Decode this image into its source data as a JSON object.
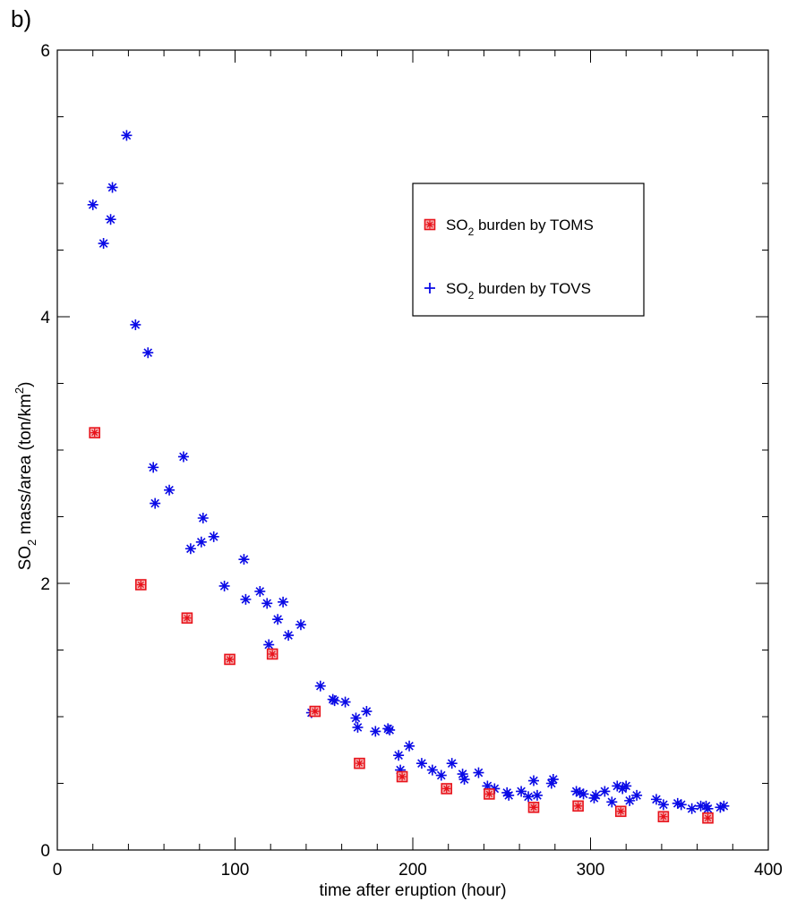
{
  "panel_label": "b)",
  "chart_data": {
    "type": "scatter",
    "xlabel": "time after eruption (hour)",
    "ylabel": {
      "prefix": "SO",
      "sub": "2",
      "mid": " mass/area (ton/km",
      "sup": "2",
      "suffix": ")"
    },
    "xlim": [
      0,
      400
    ],
    "ylim": [
      0,
      6
    ],
    "x_ticks": [
      0,
      100,
      200,
      300,
      400
    ],
    "y_ticks": [
      0,
      2,
      4,
      6
    ],
    "x_tick_labels": [
      "0",
      "100",
      "200",
      "300",
      "400"
    ],
    "y_tick_labels": [
      "0",
      "2",
      "4",
      "6"
    ],
    "grid": false,
    "legend_position": "top-right",
    "series": [
      {
        "name": "SO2 burden by TOMS",
        "legend": {
          "prefix": "SO",
          "sub": "2",
          "suffix": " burden by TOMS"
        },
        "color": "#e8131b",
        "marker": "square-star",
        "legend_marker": "square-star",
        "points": [
          [
            21,
            3.13
          ],
          [
            47,
            1.99
          ],
          [
            73,
            1.74
          ],
          [
            97,
            1.43
          ],
          [
            121,
            1.47
          ],
          [
            145,
            1.04
          ],
          [
            170,
            0.65
          ],
          [
            194,
            0.55
          ],
          [
            219,
            0.46
          ],
          [
            243,
            0.42
          ],
          [
            268,
            0.32
          ],
          [
            293,
            0.33
          ],
          [
            317,
            0.29
          ],
          [
            341,
            0.25
          ],
          [
            366,
            0.24
          ]
        ]
      },
      {
        "name": "SO2 burden by TOVS",
        "legend": {
          "prefix": "SO",
          "sub": "2",
          "suffix": " burden by TOVS"
        },
        "color": "#0a0ae6",
        "marker": "asterisk",
        "legend_marker": "plus",
        "points": [
          [
            20,
            4.84
          ],
          [
            26,
            4.55
          ],
          [
            30,
            4.73
          ],
          [
            31,
            4.97
          ],
          [
            39,
            5.36
          ],
          [
            44,
            3.94
          ],
          [
            51,
            3.73
          ],
          [
            54,
            2.87
          ],
          [
            55,
            2.6
          ],
          [
            63,
            2.7
          ],
          [
            71,
            2.95
          ],
          [
            75,
            2.26
          ],
          [
            81,
            2.31
          ],
          [
            82,
            2.49
          ],
          [
            88,
            2.35
          ],
          [
            94,
            1.98
          ],
          [
            105,
            2.18
          ],
          [
            106,
            1.88
          ],
          [
            114,
            1.94
          ],
          [
            118,
            1.85
          ],
          [
            119,
            1.54
          ],
          [
            124,
            1.73
          ],
          [
            127,
            1.86
          ],
          [
            130,
            1.61
          ],
          [
            137,
            1.69
          ],
          [
            143,
            1.03
          ],
          [
            148,
            1.23
          ],
          [
            155,
            1.13
          ],
          [
            156,
            1.12
          ],
          [
            162,
            1.11
          ],
          [
            168,
            0.99
          ],
          [
            169,
            0.92
          ],
          [
            174,
            1.04
          ],
          [
            179,
            0.89
          ],
          [
            186,
            0.91
          ],
          [
            187,
            0.9
          ],
          [
            192,
            0.71
          ],
          [
            193,
            0.6
          ],
          [
            198,
            0.78
          ],
          [
            205,
            0.65
          ],
          [
            211,
            0.6
          ],
          [
            216,
            0.56
          ],
          [
            222,
            0.65
          ],
          [
            228,
            0.57
          ],
          [
            229,
            0.53
          ],
          [
            237,
            0.58
          ],
          [
            242,
            0.48
          ],
          [
            246,
            0.46
          ],
          [
            253,
            0.43
          ],
          [
            254,
            0.41
          ],
          [
            261,
            0.44
          ],
          [
            265,
            0.4
          ],
          [
            268,
            0.52
          ],
          [
            270,
            0.41
          ],
          [
            278,
            0.5
          ],
          [
            279,
            0.53
          ],
          [
            292,
            0.44
          ],
          [
            294,
            0.43
          ],
          [
            296,
            0.42
          ],
          [
            302,
            0.39
          ],
          [
            303,
            0.41
          ],
          [
            308,
            0.44
          ],
          [
            312,
            0.36
          ],
          [
            315,
            0.48
          ],
          [
            318,
            0.46
          ],
          [
            320,
            0.48
          ],
          [
            322,
            0.37
          ],
          [
            326,
            0.41
          ],
          [
            337,
            0.38
          ],
          [
            341,
            0.34
          ],
          [
            349,
            0.35
          ],
          [
            351,
            0.34
          ],
          [
            357,
            0.31
          ],
          [
            362,
            0.33
          ],
          [
            365,
            0.33
          ],
          [
            366,
            0.31
          ],
          [
            373,
            0.32
          ],
          [
            375,
            0.33
          ]
        ]
      }
    ]
  }
}
